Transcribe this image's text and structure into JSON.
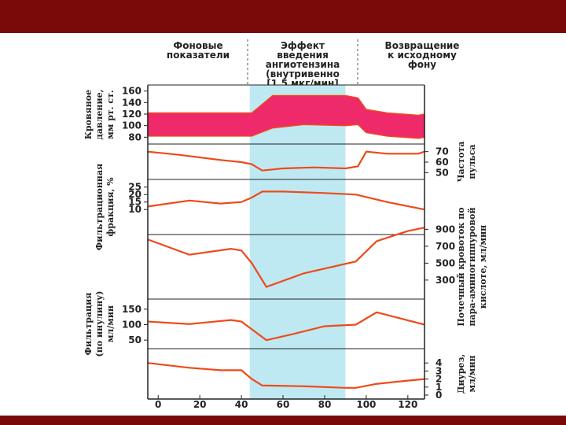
{
  "colors": {
    "frame": "#7a0a0a",
    "band": "#ee2a6a",
    "line": "#ee4a1a",
    "infusion": "#bfe9f2"
  },
  "headers": {
    "phase1": [
      "Фоновые",
      "показатели"
    ],
    "phase2": [
      "Эффект",
      "введения",
      "ангиотензина",
      "(внутривенно",
      "[1,5 мкг/мин]"
    ],
    "phase3": [
      "Возвращение",
      "к исходному",
      "фону"
    ]
  },
  "chart_data": {
    "type": "line",
    "x_ticks": [
      0,
      20,
      40,
      60,
      80,
      100,
      120
    ],
    "xlim": [
      -5,
      128
    ],
    "infusion_interval": [
      44,
      90
    ],
    "panels": [
      {
        "id": "blood_pressure",
        "label": [
          "Кровяное",
          "давление,",
          "мм рт. ст."
        ],
        "side": "left",
        "ticks": [
          160,
          140,
          120,
          100,
          80
        ],
        "ylim": [
          75,
          165
        ],
        "type": "area",
        "x": [
          -5,
          40,
          45,
          55,
          70,
          90,
          96,
          100,
          110,
          125,
          128
        ],
        "upper": [
          122,
          122,
          122,
          152,
          152,
          152,
          148,
          128,
          122,
          118,
          120
        ],
        "lower": [
          82,
          82,
          82,
          96,
          102,
          100,
          102,
          88,
          82,
          78,
          80
        ]
      },
      {
        "id": "pulse_rate",
        "label": [
          "Частота",
          "пульса"
        ],
        "side": "right",
        "ticks": [
          70,
          60,
          50
        ],
        "ylim": [
          48,
          75
        ],
        "x": [
          -5,
          10,
          30,
          40,
          45,
          50,
          60,
          75,
          90,
          96,
          100,
          110,
          125,
          128
        ],
        "y": [
          70,
          67,
          62,
          60,
          58,
          52,
          54,
          55,
          54,
          56,
          70,
          68,
          68,
          70
        ]
      },
      {
        "id": "filtration_fraction",
        "label": [
          "Фильтрационная",
          "фракция, %"
        ],
        "side": "left",
        "ticks": [
          25,
          20,
          15,
          10
        ],
        "ylim": [
          8,
          28
        ],
        "x": [
          -5,
          15,
          30,
          40,
          45,
          50,
          60,
          80,
          95,
          110,
          128
        ],
        "y": [
          12,
          16,
          14,
          15,
          18,
          22,
          22,
          21,
          20,
          15,
          10
        ]
      },
      {
        "id": "renal_blood_flow",
        "label": [
          "Почечный кровоток по",
          "пара-аминогиппуровой",
          "кислоте, мл/мин"
        ],
        "side": "right",
        "ticks": [
          900,
          700,
          500,
          300
        ],
        "ylim": [
          150,
          950
        ],
        "x": [
          -5,
          15,
          35,
          40,
          45,
          52,
          70,
          95,
          105,
          120,
          128
        ],
        "y": [
          780,
          600,
          670,
          650,
          500,
          220,
          380,
          520,
          760,
          880,
          920
        ]
      },
      {
        "id": "inulin_filtration",
        "label": [
          "Фильтрация",
          "(по инулину)",
          "мл/мин"
        ],
        "side": "left",
        "ticks": [
          150,
          100,
          50
        ],
        "ylim": [
          30,
          170
        ],
        "x": [
          -5,
          15,
          35,
          40,
          45,
          52,
          65,
          80,
          95,
          105,
          128
        ],
        "y": [
          110,
          102,
          115,
          110,
          85,
          50,
          70,
          95,
          100,
          140,
          100
        ]
      },
      {
        "id": "diuresis",
        "label": [
          "Диурез,",
          "мл/мин"
        ],
        "side": "right",
        "ticks": [
          4,
          3,
          2,
          1,
          0
        ],
        "ylim": [
          0,
          5
        ],
        "x": [
          -5,
          15,
          30,
          40,
          45,
          50,
          70,
          90,
          95,
          105,
          120,
          128
        ],
        "y": [
          4,
          3.4,
          3.1,
          3.1,
          2.0,
          1.2,
          1.1,
          0.9,
          0.9,
          1.4,
          1.8,
          2.0
        ]
      }
    ]
  }
}
